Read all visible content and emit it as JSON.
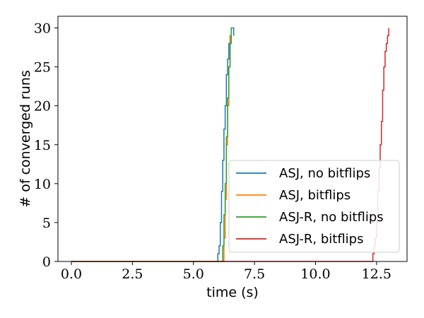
{
  "chart_data": {
    "type": "line",
    "title": "",
    "xlabel": "time (s)",
    "ylabel": "# of converged runs",
    "xlim": [
      -0.55,
      13.75
    ],
    "ylim": [
      0,
      31.5
    ],
    "xticks": [
      0.0,
      2.5,
      5.0,
      7.5,
      10.0,
      12.5
    ],
    "xtick_labels": [
      "0.0",
      "2.5",
      "5.0",
      "7.5",
      "10.0",
      "12.5"
    ],
    "yticks": [
      0,
      5,
      10,
      15,
      20,
      25,
      30
    ],
    "ytick_labels": [
      "0",
      "5",
      "10",
      "15",
      "20",
      "25",
      "30"
    ],
    "grid": false,
    "legend_position": "lower-right",
    "series": [
      {
        "name": "ASJ, no bitflips",
        "color": "#1f77b4",
        "step": true,
        "x": [
          0.0,
          6.0,
          6.05,
          6.1,
          6.15,
          6.2,
          6.25,
          6.3,
          6.35,
          6.4,
          6.45,
          6.5,
          6.55,
          6.6,
          6.65
        ],
        "y": [
          0,
          1,
          2,
          5,
          9,
          13,
          17,
          20,
          24,
          26,
          28,
          29,
          30,
          30,
          29
        ]
      },
      {
        "name": "ASJ, bitflips",
        "color": "#ff7f0e",
        "step": true,
        "x": [
          0.0,
          6.25,
          6.3,
          6.35,
          6.4,
          6.45,
          6.5,
          6.55
        ],
        "y": [
          0,
          3,
          8,
          15,
          20,
          25,
          29,
          30
        ]
      },
      {
        "name": "ASJ-R, no bitflips",
        "color": "#2ca02c",
        "step": true,
        "x": [
          0.0,
          6.2,
          6.25,
          6.3,
          6.35,
          6.4,
          6.45,
          6.5,
          6.55
        ],
        "y": [
          0,
          2,
          6,
          10,
          16,
          21,
          25,
          28,
          30
        ]
      },
      {
        "name": "ASJ-R, bitflips",
        "color": "#d62728",
        "step": true,
        "x": [
          0.0,
          12.35,
          12.4,
          12.45,
          12.5,
          12.55,
          12.6,
          12.65,
          12.7,
          12.75,
          12.8,
          12.85,
          12.9,
          12.95,
          13.0
        ],
        "y": [
          0,
          1,
          2,
          3,
          5,
          9,
          12,
          15,
          18,
          22,
          25,
          27,
          28,
          29,
          30
        ]
      }
    ]
  }
}
